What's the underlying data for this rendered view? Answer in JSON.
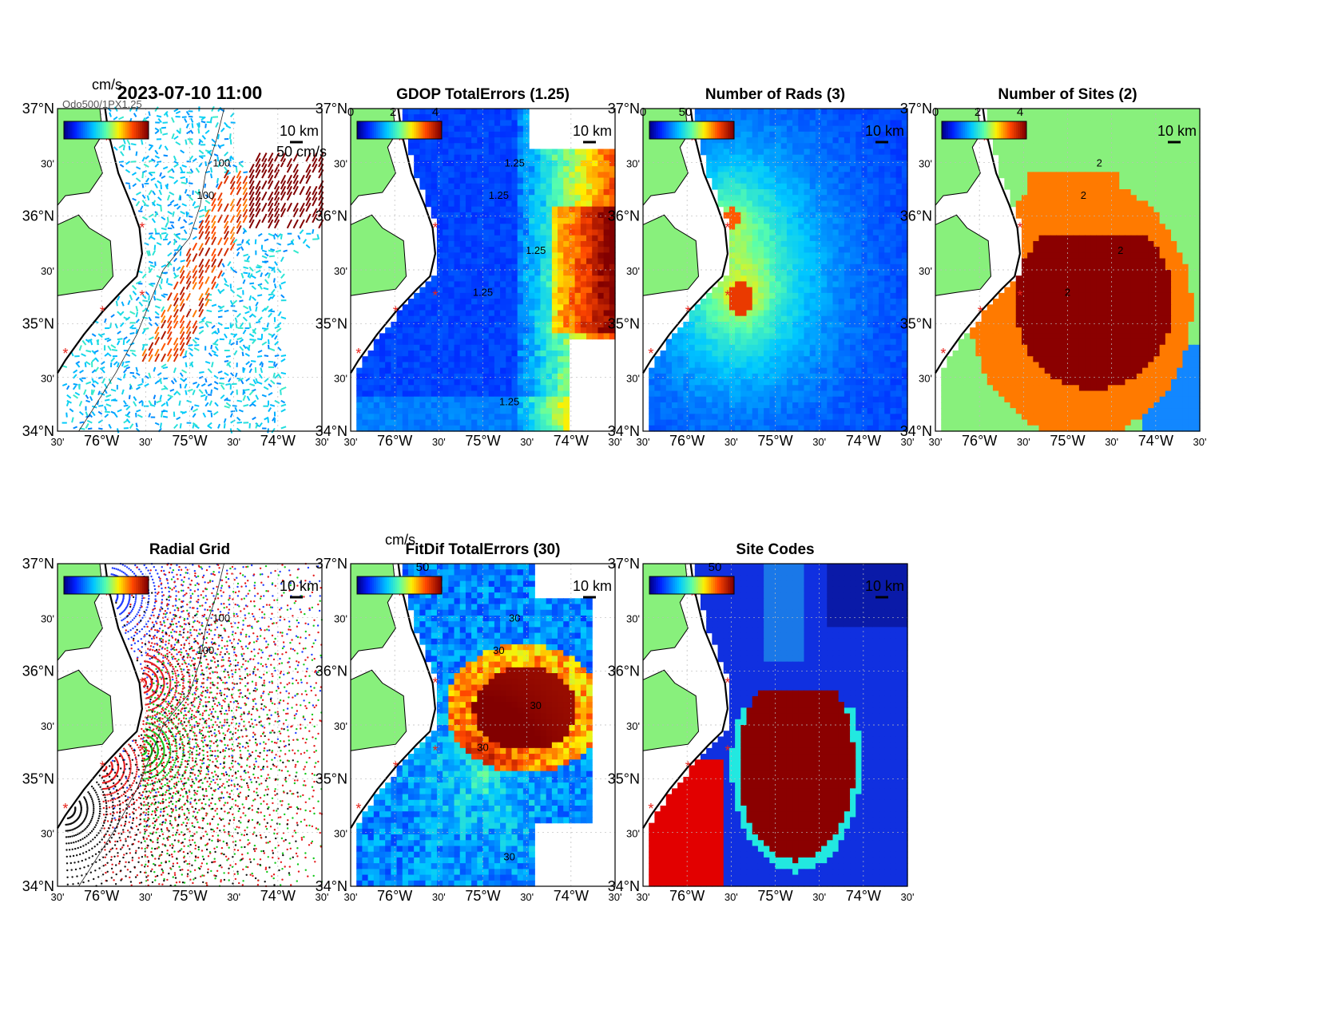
{
  "figure_title": "2023-07-10 11:00",
  "overlap_label": "Odo500/1PX1.25",
  "ticks": {
    "lat_major": [
      "37°N",
      "36°N",
      "35°N",
      "34°N"
    ],
    "lat_minor": "30'",
    "lon_major": [
      "76°W",
      "75°W",
      "74°W"
    ],
    "lon_minor": "30'"
  },
  "colors": {
    "land": "#88f07c",
    "coast": "#000000",
    "site_marker": "#e8231a",
    "grid_dots": [
      "#1e3cff",
      "#e41a1c",
      "#12c81a",
      "#111111"
    ]
  },
  "panels": [
    {
      "id": "currents",
      "title": "2023-07-10 11:00",
      "units": "cm/s",
      "colorbar_ticks": [],
      "scale_label": "10 km",
      "extra_label": "50 cm/s",
      "contour_labels": [
        "100",
        "100"
      ],
      "layer": "vectors"
    },
    {
      "id": "gdop",
      "title": "GDOP TotalErrors (1.25)",
      "units": "",
      "colorbar_ticks": [
        "0",
        "2",
        "4"
      ],
      "scale_label": "10 km",
      "contour_labels": [
        "1.25",
        "1.25",
        "1.25",
        "1.25",
        "1.25"
      ],
      "layer": "gdop"
    },
    {
      "id": "rads",
      "title": "Number of Rads (3)",
      "units": "",
      "colorbar_ticks": [
        "0",
        "50"
      ],
      "scale_label": "10 km",
      "contour_labels": [],
      "layer": "rads"
    },
    {
      "id": "sites",
      "title": "Number of Sites (2)",
      "units": "",
      "colorbar_ticks": [
        "0",
        "2",
        "4"
      ],
      "scale_label": "10 km",
      "contour_labels": [
        "2",
        "2",
        "2",
        "2"
      ],
      "layer": "sites"
    },
    {
      "id": "radial",
      "title": "Radial Grid",
      "units": "",
      "colorbar_ticks": [],
      "scale_label": "10 km",
      "contour_labels": [
        "100",
        "100"
      ],
      "layer": "radial"
    },
    {
      "id": "fitdif",
      "title": "FitDif TotalErrors (30)",
      "units": "cm/s",
      "colorbar_ticks": [
        "50"
      ],
      "scale_label": "10 km",
      "contour_labels": [
        "30",
        "30",
        "30",
        "30",
        "30"
      ],
      "layer": "fitdif"
    },
    {
      "id": "sitecodes",
      "title": "Site Codes",
      "units": "",
      "colorbar_ticks": [
        "50"
      ],
      "scale_label": "10 km",
      "contour_labels": [],
      "layer": "sitecodes"
    }
  ]
}
